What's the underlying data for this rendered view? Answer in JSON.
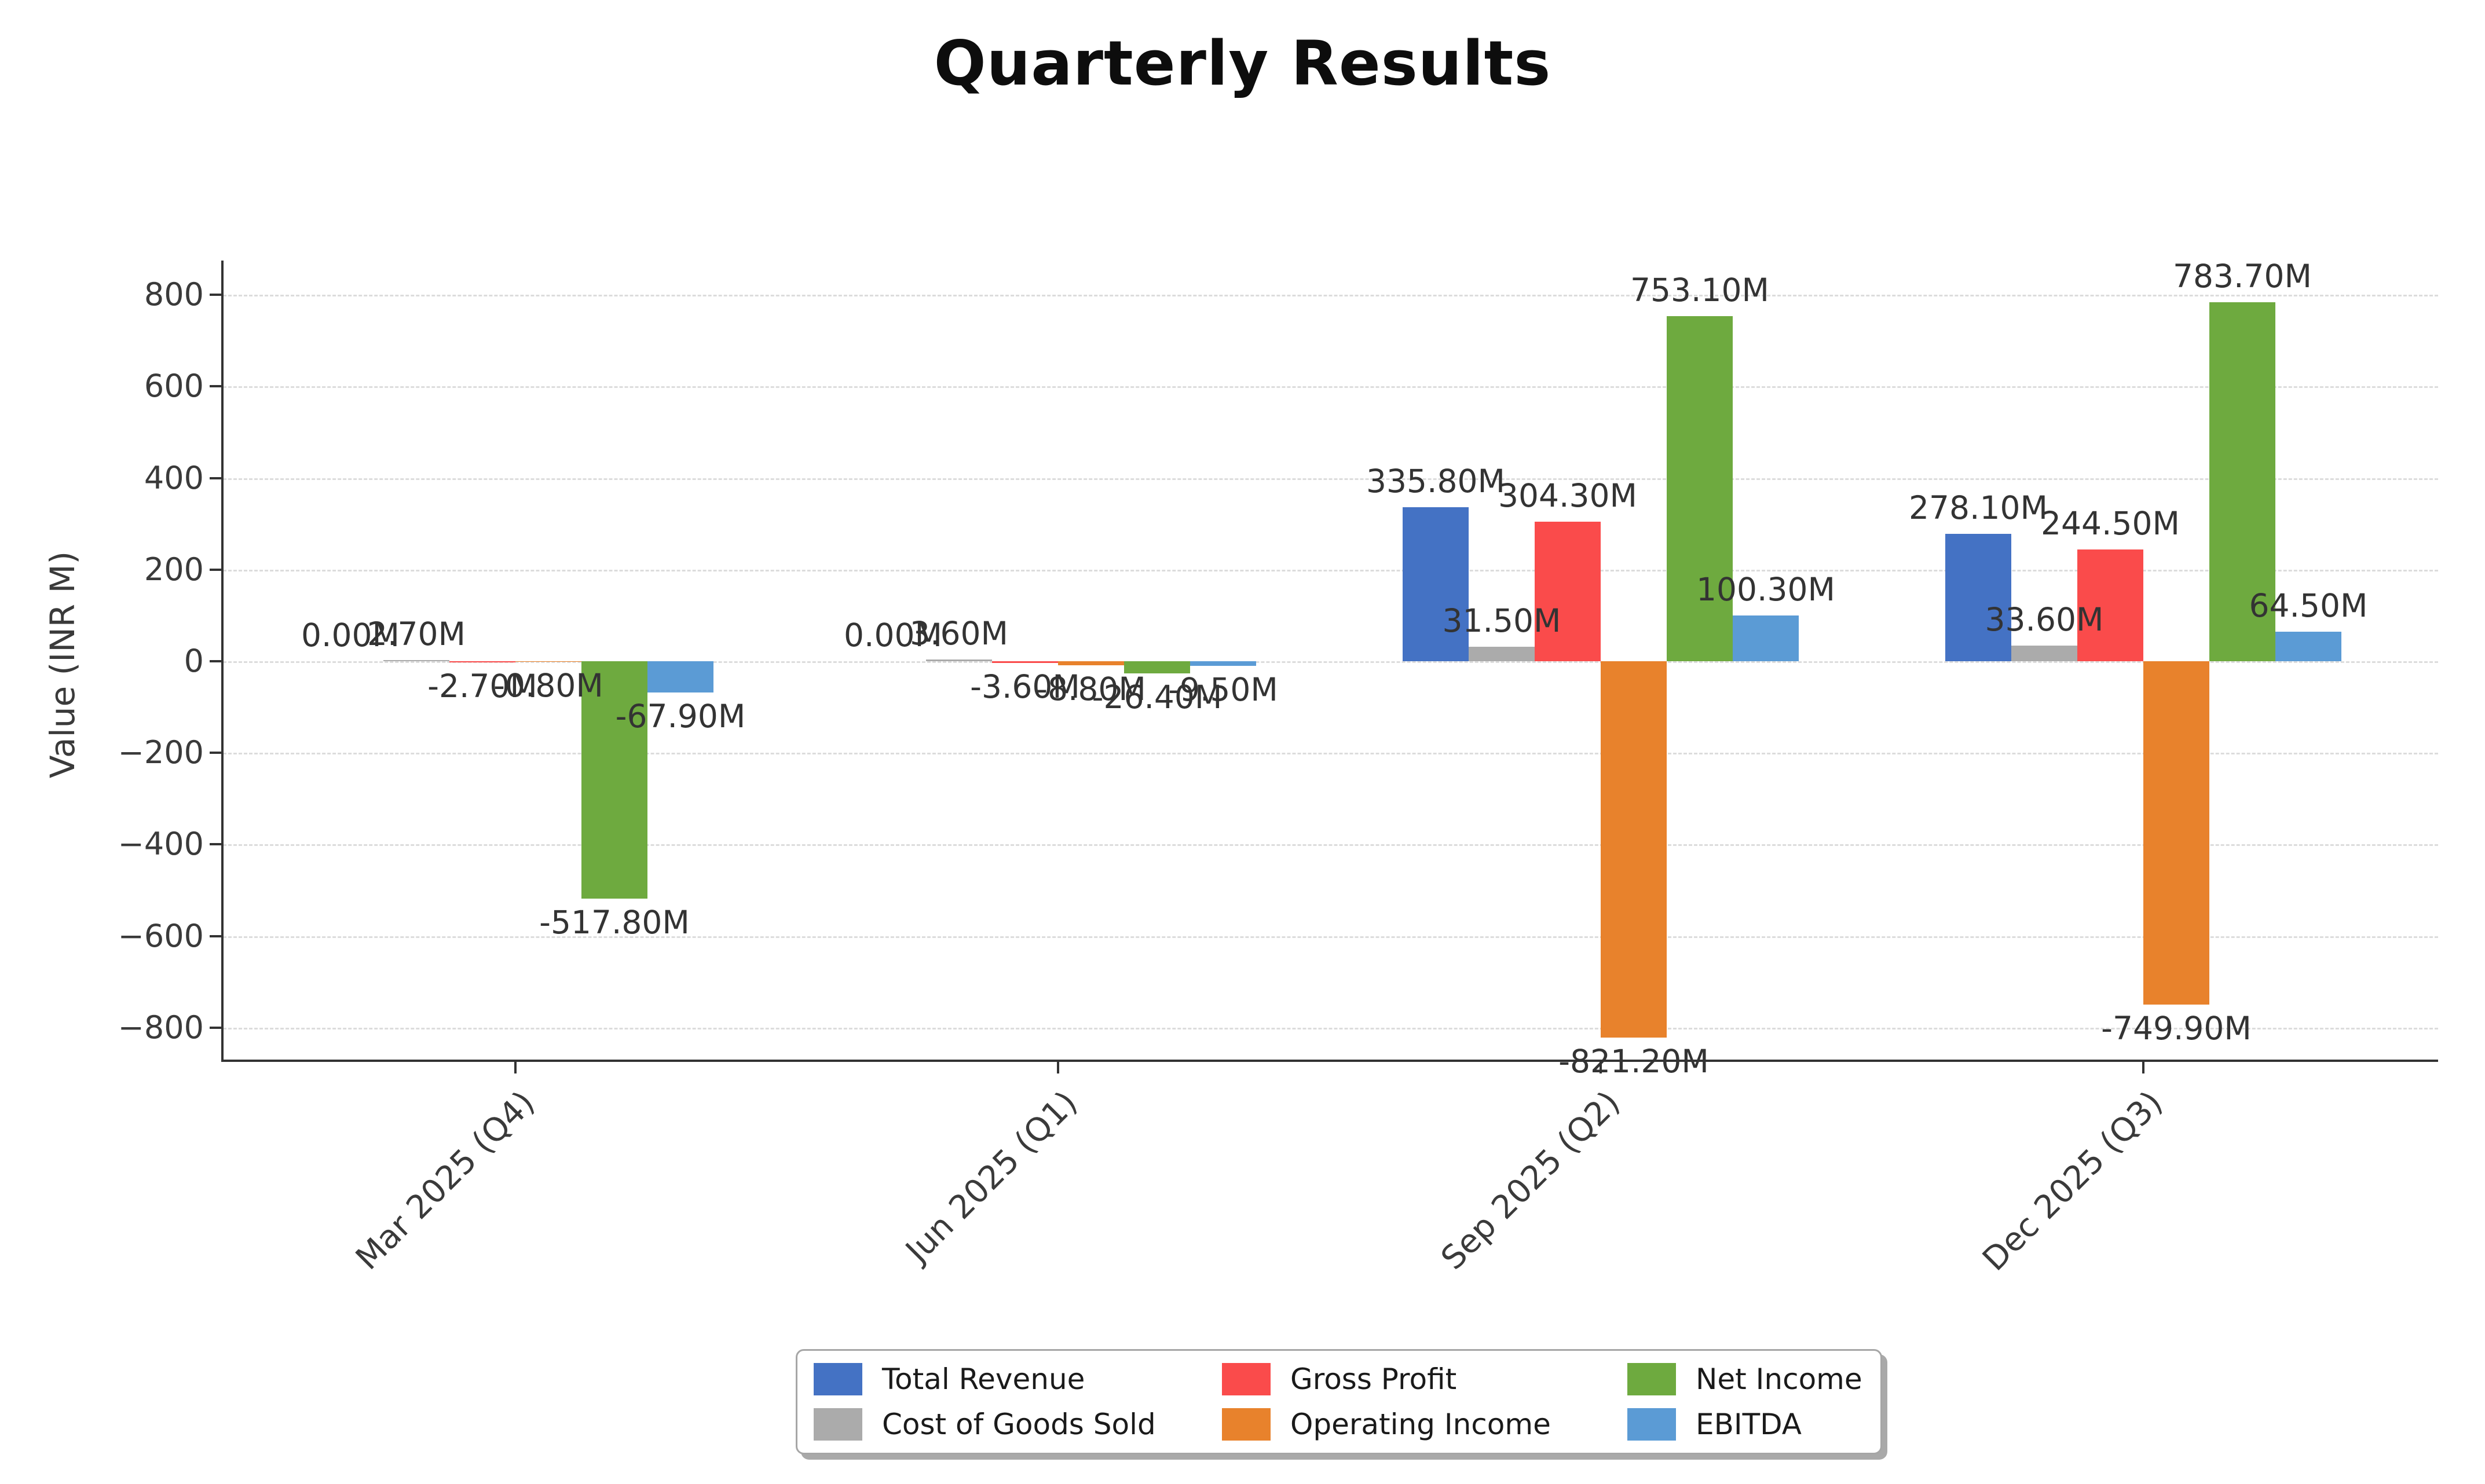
{
  "chart_data": {
    "type": "bar",
    "title": "Quarterly Results",
    "ylabel": "Value (INR M)",
    "value_suffix": "M",
    "categories": [
      "Mar 2025 (Q4)",
      "Jun 2025 (Q1)",
      "Sep 2025 (Q2)",
      "Dec 2025 (Q3)"
    ],
    "series": [
      {
        "name": "Total Revenue",
        "color": "#4472C4",
        "values": [
          0.0,
          0.0,
          335.8,
          278.1
        ]
      },
      {
        "name": "Cost of Goods Sold",
        "color": "#ABABAB",
        "values": [
          2.7,
          3.6,
          31.5,
          33.6
        ]
      },
      {
        "name": "Gross Profit",
        "color": "#FA4B4B",
        "values": [
          -2.7,
          -3.6,
          304.3,
          244.5
        ]
      },
      {
        "name": "Operating Income",
        "color": "#E8822C",
        "values": [
          -0.8,
          -8.8,
          -821.2,
          -749.9
        ]
      },
      {
        "name": "Net Income",
        "color": "#6EAA3F",
        "values": [
          -517.8,
          -26.4,
          753.1,
          783.7
        ]
      },
      {
        "name": "EBITDA",
        "color": "#5B9BD5",
        "values": [
          -67.9,
          -9.5,
          100.3,
          64.5
        ]
      }
    ],
    "data_labels": [
      [
        "0.00M",
        "0.00M",
        "335.80M",
        "278.10M"
      ],
      [
        "2.70M",
        "3.60M",
        "31.50M",
        "33.60M"
      ],
      [
        "-2.70M",
        "-3.60M",
        "304.30M",
        "244.50M"
      ],
      [
        "-0.80M",
        "-8.80M",
        "-821.20M",
        "-749.90M"
      ],
      [
        "-517.80M",
        "-26.40M",
        "753.10M",
        "783.70M"
      ],
      [
        "-67.90M",
        "-9.50M",
        "100.30M",
        "64.50M"
      ]
    ],
    "y_ticks": [
      {
        "v": 800,
        "label": "800"
      },
      {
        "v": 600,
        "label": "600"
      },
      {
        "v": 400,
        "label": "400"
      },
      {
        "v": 200,
        "label": "200"
      },
      {
        "v": 0,
        "label": "0"
      },
      {
        "v": -200,
        "label": "−200"
      },
      {
        "v": -400,
        "label": "−400"
      },
      {
        "v": -600,
        "label": "−600"
      },
      {
        "v": -800,
        "label": "−800"
      }
    ],
    "ylim": [
      -870,
      875
    ],
    "grid": "horizontal dashed",
    "legend_position": "bottom center",
    "legend_order": [
      0,
      2,
      4,
      1,
      3,
      5
    ]
  }
}
